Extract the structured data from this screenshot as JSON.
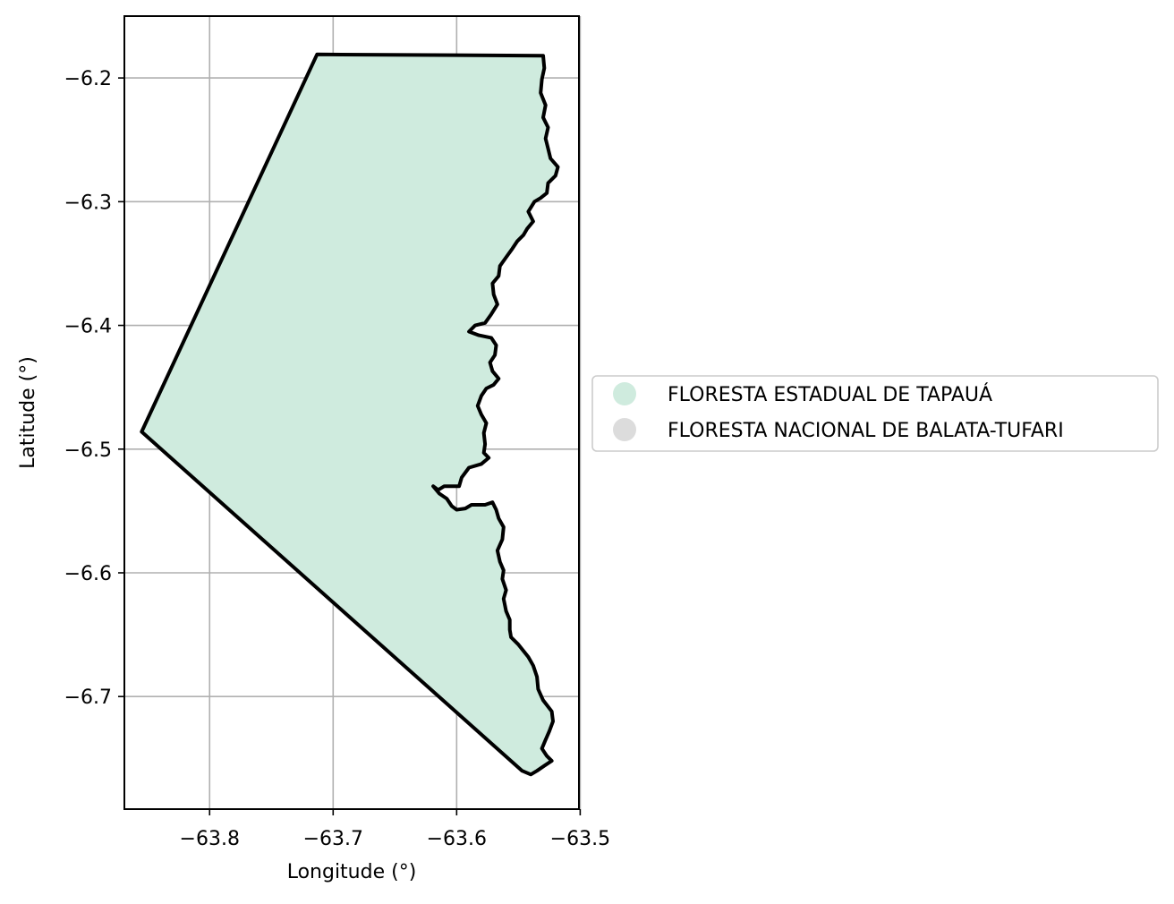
{
  "map": {
    "xlabel": "Longitude (°)",
    "ylabel": "Latitude (°)",
    "grid": true,
    "legend_placement": "right-center",
    "x_ticks": [
      {
        "value": -63.8,
        "label": "−63.8"
      },
      {
        "value": -63.7,
        "label": "−63.7"
      },
      {
        "value": -63.6,
        "label": "−63.6"
      },
      {
        "value": -63.5,
        "label": "−63.5"
      }
    ],
    "y_ticks": [
      {
        "value": -6.2,
        "label": "−6.2"
      },
      {
        "value": -6.3,
        "label": "−6.3"
      },
      {
        "value": -6.4,
        "label": "−6.4"
      },
      {
        "value": -6.5,
        "label": "−6.5"
      },
      {
        "value": -6.6,
        "label": "−6.6"
      },
      {
        "value": -6.7,
        "label": "−6.7"
      }
    ],
    "xlim": [
      -63.869,
      -63.501
    ],
    "ylim": [
      -6.791,
      -6.15
    ],
    "legend": [
      {
        "name": "FLORESTA ESTADUAL DE TAPAUÁ",
        "color": "#cfebde"
      },
      {
        "name": "FLORESTA NACIONAL DE BALATA-TUFARI",
        "color": "#dcdcdc"
      }
    ],
    "regions": [
      {
        "name": "FLORESTA ESTADUAL DE TAPAUÁ",
        "fill": "#cfebde",
        "stroke": "#000000",
        "boundary": [
          [
            -63.713,
            -6.181
          ],
          [
            -63.53,
            -6.182
          ],
          [
            -63.529,
            -6.192
          ],
          [
            -63.531,
            -6.201
          ],
          [
            -63.532,
            -6.212
          ],
          [
            -63.528,
            -6.222
          ],
          [
            -63.53,
            -6.232
          ],
          [
            -63.526,
            -6.24
          ],
          [
            -63.528,
            -6.249
          ],
          [
            -63.526,
            -6.257
          ],
          [
            -63.524,
            -6.265
          ],
          [
            -63.518,
            -6.272
          ],
          [
            -63.52,
            -6.279
          ],
          [
            -63.526,
            -6.285
          ],
          [
            -63.527,
            -6.293
          ],
          [
            -63.532,
            -6.297
          ],
          [
            -63.537,
            -6.3
          ],
          [
            -63.542,
            -6.308
          ],
          [
            -63.538,
            -6.316
          ],
          [
            -63.543,
            -6.322
          ],
          [
            -63.546,
            -6.327
          ],
          [
            -63.551,
            -6.332
          ],
          [
            -63.555,
            -6.338
          ],
          [
            -63.56,
            -6.345
          ],
          [
            -63.565,
            -6.352
          ],
          [
            -63.566,
            -6.36
          ],
          [
            -63.571,
            -6.366
          ],
          [
            -63.57,
            -6.375
          ],
          [
            -63.567,
            -6.383
          ],
          [
            -63.572,
            -6.391
          ],
          [
            -63.577,
            -6.398
          ],
          [
            -63.585,
            -6.4
          ],
          [
            -63.59,
            -6.405
          ],
          [
            -63.582,
            -6.408
          ],
          [
            -63.572,
            -6.41
          ],
          [
            -63.568,
            -6.416
          ],
          [
            -63.569,
            -6.424
          ],
          [
            -63.573,
            -6.43
          ],
          [
            -63.571,
            -6.437
          ],
          [
            -63.566,
            -6.443
          ],
          [
            -63.57,
            -6.448
          ],
          [
            -63.576,
            -6.451
          ],
          [
            -63.58,
            -6.457
          ],
          [
            -63.583,
            -6.465
          ],
          [
            -63.58,
            -6.472
          ],
          [
            -63.576,
            -6.479
          ],
          [
            -63.578,
            -6.487
          ],
          [
            -63.577,
            -6.496
          ],
          [
            -63.578,
            -6.503
          ],
          [
            -63.574,
            -6.507
          ],
          [
            -63.58,
            -6.512
          ],
          [
            -63.59,
            -6.515
          ],
          [
            -63.596,
            -6.523
          ],
          [
            -63.598,
            -6.53
          ],
          [
            -63.604,
            -6.53
          ],
          [
            -63.61,
            -6.53
          ],
          [
            -63.615,
            -6.533
          ],
          [
            -63.619,
            -6.53
          ],
          [
            -63.614,
            -6.536
          ],
          [
            -63.608,
            -6.54
          ],
          [
            -63.604,
            -6.546
          ],
          [
            -63.6,
            -6.549
          ],
          [
            -63.593,
            -6.548
          ],
          [
            -63.588,
            -6.545
          ],
          [
            -63.583,
            -6.545
          ],
          [
            -63.577,
            -6.545
          ],
          [
            -63.571,
            -6.543
          ],
          [
            -63.568,
            -6.549
          ],
          [
            -63.566,
            -6.556
          ],
          [
            -63.562,
            -6.563
          ],
          [
            -63.563,
            -6.573
          ],
          [
            -63.567,
            -6.582
          ],
          [
            -63.565,
            -6.591
          ],
          [
            -63.562,
            -6.598
          ],
          [
            -63.563,
            -6.605
          ],
          [
            -63.56,
            -6.614
          ],
          [
            -63.562,
            -6.621
          ],
          [
            -63.56,
            -6.631
          ],
          [
            -63.557,
            -6.638
          ],
          [
            -63.557,
            -6.646
          ],
          [
            -63.556,
            -6.652
          ],
          [
            -63.55,
            -6.658
          ],
          [
            -63.546,
            -6.663
          ],
          [
            -63.542,
            -6.668
          ],
          [
            -63.538,
            -6.675
          ],
          [
            -63.535,
            -6.684
          ],
          [
            -63.534,
            -6.694
          ],
          [
            -63.53,
            -6.703
          ],
          [
            -63.523,
            -6.712
          ],
          [
            -63.522,
            -6.72
          ],
          [
            -63.525,
            -6.728
          ],
          [
            -63.528,
            -6.735
          ],
          [
            -63.531,
            -6.742
          ],
          [
            -63.527,
            -6.748
          ],
          [
            -63.523,
            -6.752
          ],
          [
            -63.529,
            -6.756
          ],
          [
            -63.535,
            -6.76
          ],
          [
            -63.54,
            -6.763
          ],
          [
            -63.547,
            -6.76
          ],
          [
            -63.855,
            -6.486
          ]
        ]
      }
    ]
  }
}
